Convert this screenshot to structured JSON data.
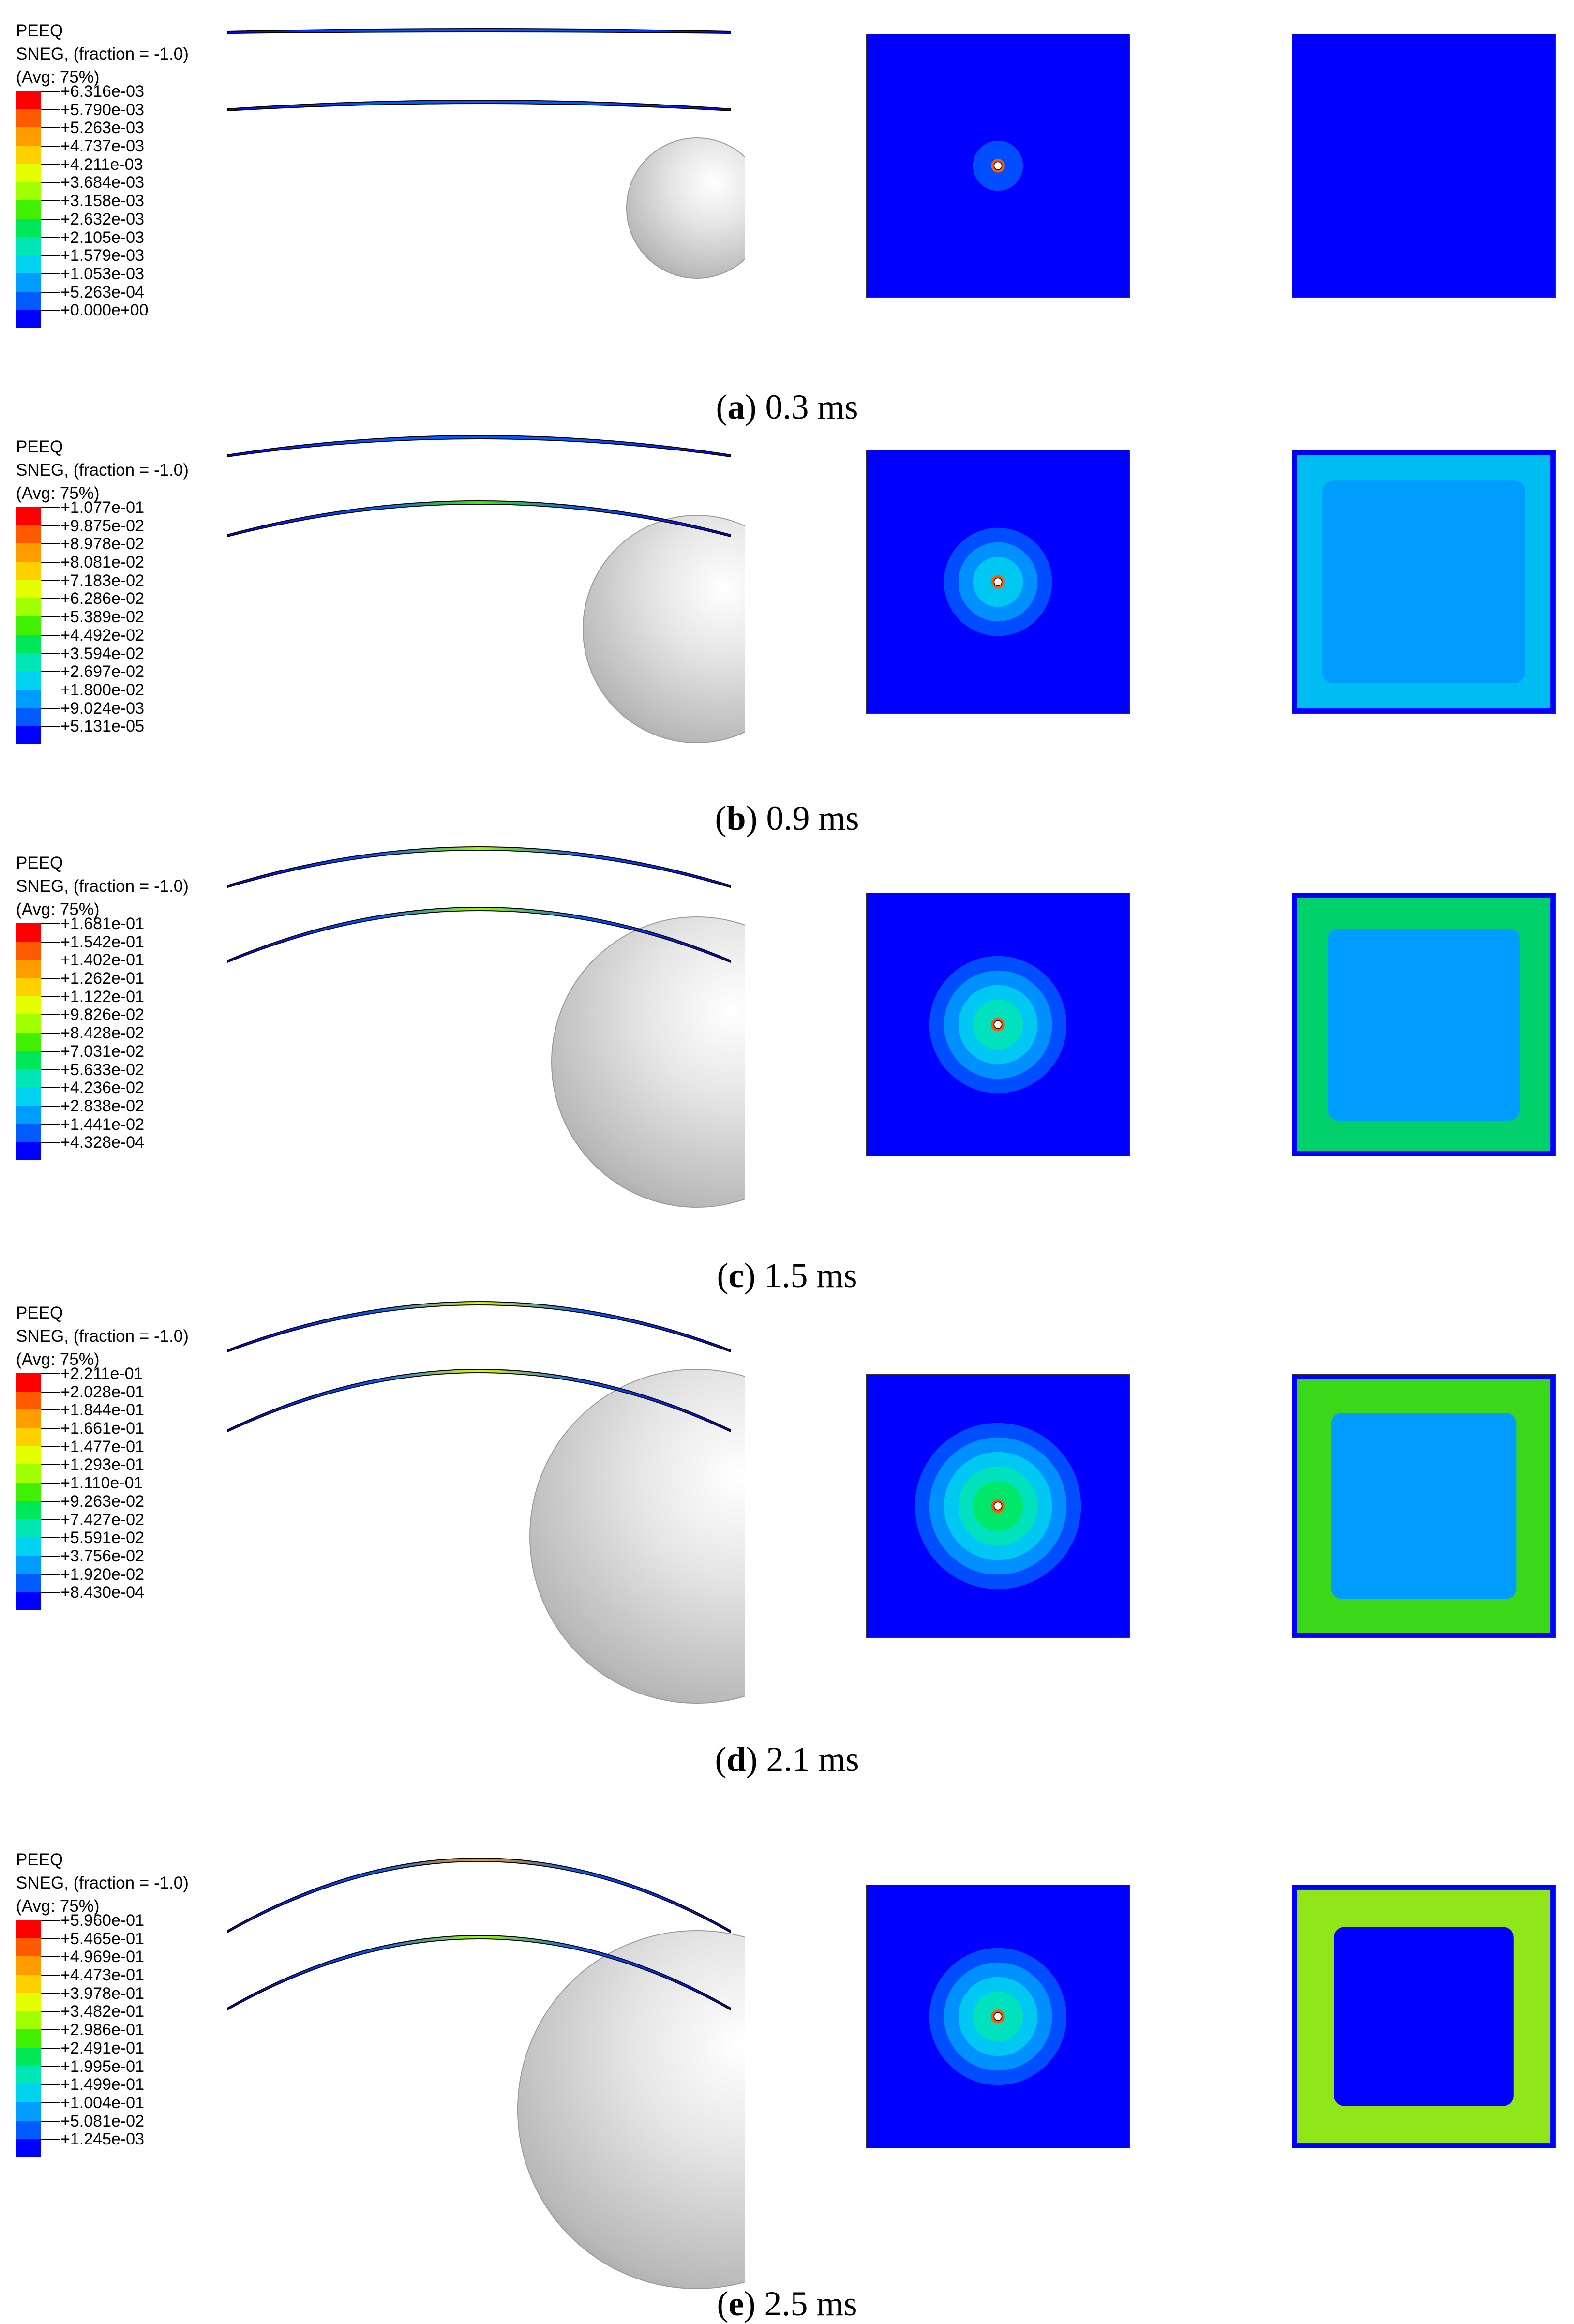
{
  "legend_header": [
    "PEEQ",
    "SNEG, (fraction = -1.0)",
    "(Avg: 75%)"
  ],
  "colors": [
    "#ff0000",
    "#ff5a00",
    "#ff9c00",
    "#ffd000",
    "#e4ff00",
    "#a0ff00",
    "#40f000",
    "#00e85a",
    "#00e6b4",
    "#00d2f0",
    "#009cff",
    "#005cff",
    "#0000ff"
  ],
  "panels": [
    {
      "label": "a",
      "time": "0.3 ms",
      "ticks": [
        "+6.316e-03",
        "+5.790e-03",
        "+5.263e-03",
        "+4.737e-03",
        "+4.211e-03",
        "+3.684e-03",
        "+3.158e-03",
        "+2.632e-03",
        "+2.105e-03",
        "+1.579e-03",
        "+1.053e-03",
        "+5.263e-04",
        "+0.000e+00"
      ]
    },
    {
      "label": "b",
      "time": "0.9 ms",
      "ticks": [
        "+1.077e-01",
        "+9.875e-02",
        "+8.978e-02",
        "+8.081e-02",
        "+7.183e-02",
        "+6.286e-02",
        "+5.389e-02",
        "+4.492e-02",
        "+3.594e-02",
        "+2.697e-02",
        "+1.800e-02",
        "+9.024e-03",
        "+5.131e-05"
      ]
    },
    {
      "label": "c",
      "time": "1.5 ms",
      "ticks": [
        "+1.681e-01",
        "+1.542e-01",
        "+1.402e-01",
        "+1.262e-01",
        "+1.122e-01",
        "+9.826e-02",
        "+8.428e-02",
        "+7.031e-02",
        "+5.633e-02",
        "+4.236e-02",
        "+2.838e-02",
        "+1.441e-02",
        "+4.328e-04"
      ]
    },
    {
      "label": "d",
      "time": "2.1 ms",
      "ticks": [
        "+2.211e-01",
        "+2.028e-01",
        "+1.844e-01",
        "+1.661e-01",
        "+1.477e-01",
        "+1.293e-01",
        "+1.110e-01",
        "+9.263e-02",
        "+7.427e-02",
        "+5.591e-02",
        "+3.756e-02",
        "+1.920e-02",
        "+8.430e-04"
      ]
    },
    {
      "label": "e",
      "time": "2.5 ms",
      "ticks": [
        "+5.960e-01",
        "+5.465e-01",
        "+4.969e-01",
        "+4.473e-01",
        "+3.978e-01",
        "+3.482e-01",
        "+2.986e-01",
        "+2.491e-01",
        "+1.995e-01",
        "+1.499e-01",
        "+1.004e-01",
        "+5.081e-02",
        "+1.245e-03"
      ]
    }
  ]
}
